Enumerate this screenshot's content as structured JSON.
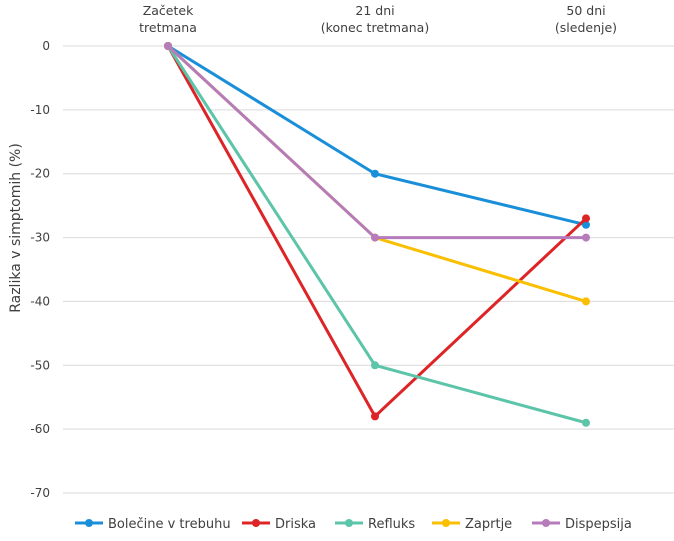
{
  "chart_data": {
    "type": "line",
    "ylabel": "Razlika v simptomih (%)",
    "ylim": [
      -70,
      0
    ],
    "yticks": [
      0,
      -10,
      -20,
      -30,
      -40,
      -50,
      -60,
      -70
    ],
    "grid": true,
    "legend_position": "bottom",
    "x_position": "top",
    "categories": [
      [
        "Začetek",
        "tretmana"
      ],
      [
        "21 dni",
        "(konec tretmana)"
      ],
      [
        "50 dni",
        "(sledenje)"
      ]
    ],
    "series": [
      {
        "name": "Bolečine v trebuhu",
        "color": "#1a8fd9",
        "values": [
          0,
          -20,
          -28
        ]
      },
      {
        "name": "Driska",
        "color": "#dd2427",
        "values": [
          0,
          -58,
          -27
        ]
      },
      {
        "name": "Refluks",
        "color": "#5cc4a8",
        "values": [
          0,
          -50,
          -59
        ]
      },
      {
        "name": "Zaprtje",
        "color": "#f9bf00",
        "values": [
          0,
          -30,
          -40
        ]
      },
      {
        "name": "Dispepsija",
        "color": "#b57bba",
        "values": [
          0,
          -30,
          -30
        ]
      }
    ]
  }
}
